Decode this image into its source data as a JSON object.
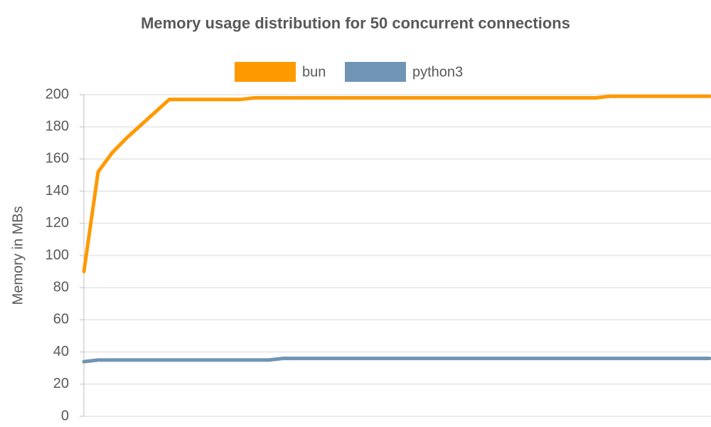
{
  "chart_data": {
    "type": "line",
    "title": "Memory usage distribution for 50 concurrent connections",
    "y_label": "Memory in MBs",
    "categories": [
      null,
      null,
      null,
      null,
      null,
      null,
      null,
      null,
      null,
      null,
      null,
      null,
      null,
      null,
      null,
      null,
      null,
      null,
      null,
      null,
      null,
      null,
      null,
      null,
      null,
      null,
      null,
      null,
      null,
      null,
      null,
      null,
      null,
      null,
      null,
      null,
      null,
      null,
      null,
      null,
      null,
      null,
      null,
      null,
      null
    ],
    "series": [
      {
        "name": "bun",
        "color": "#ff9900",
        "values": [
          90,
          152,
          164,
          173,
          181,
          189,
          197,
          197,
          197,
          197,
          197,
          197,
          198,
          198,
          198,
          198,
          198,
          198,
          198,
          198,
          198,
          198,
          198,
          198,
          198,
          198,
          198,
          198,
          198,
          198,
          198,
          198,
          198,
          198,
          198,
          198,
          198,
          199,
          199,
          199,
          199,
          199,
          199,
          199,
          199
        ]
      },
      {
        "name": "python3",
        "color": "#7094b4",
        "values": [
          34,
          35,
          35,
          35,
          35,
          35,
          35,
          35,
          35,
          35,
          35,
          35,
          35,
          35,
          36,
          36,
          36,
          36,
          36,
          36,
          36,
          36,
          36,
          36,
          36,
          36,
          36,
          36,
          36,
          36,
          36,
          36,
          36,
          36,
          36,
          36,
          36,
          36,
          36,
          36,
          36,
          36,
          36,
          36,
          36
        ]
      }
    ],
    "ylim": [
      0,
      200
    ],
    "yticks": [
      0,
      20,
      40,
      60,
      80,
      100,
      120,
      140,
      160,
      180,
      200
    ],
    "grid": true
  }
}
